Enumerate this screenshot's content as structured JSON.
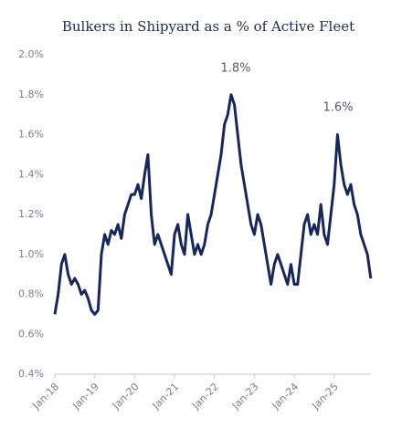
{
  "chart_data": {
    "type": "line",
    "title": "Bulkers in Shipyard as a % of Active Fleet",
    "categories": [
      "Jan-18",
      null,
      null,
      null,
      null,
      null,
      null,
      null,
      null,
      null,
      null,
      null,
      "Jan-19",
      null,
      null,
      null,
      null,
      null,
      null,
      null,
      null,
      null,
      null,
      null,
      "Jan-20",
      null,
      null,
      null,
      null,
      null,
      null,
      null,
      null,
      null,
      null,
      null,
      "Jan-21",
      null,
      null,
      null,
      null,
      null,
      null,
      null,
      null,
      null,
      null,
      null,
      "Jan-22",
      null,
      null,
      null,
      null,
      null,
      null,
      null,
      null,
      null,
      null,
      null,
      "Jan-23",
      null,
      null,
      null,
      null,
      null,
      null,
      null,
      null,
      null,
      null,
      null,
      "Jan-24",
      null,
      null,
      null,
      null,
      null,
      null,
      null,
      null,
      null,
      null,
      null,
      "Jan-25",
      null,
      null,
      null,
      null,
      null,
      null,
      null,
      null,
      null,
      null,
      null
    ],
    "series": [
      {
        "color": "#15275e",
        "values": [
          0.7,
          0.8,
          0.95,
          1.0,
          0.9,
          0.85,
          0.88,
          0.85,
          0.8,
          0.82,
          0.78,
          0.72,
          0.7,
          0.72,
          1.0,
          1.1,
          1.05,
          1.12,
          1.1,
          1.15,
          1.08,
          1.2,
          1.25,
          1.3,
          1.3,
          1.35,
          1.28,
          1.4,
          1.5,
          1.2,
          1.05,
          1.1,
          1.05,
          1.0,
          0.95,
          0.9,
          1.1,
          1.15,
          1.05,
          1.0,
          1.2,
          1.1,
          1.0,
          1.05,
          1.0,
          1.05,
          1.15,
          1.2,
          1.3,
          1.4,
          1.5,
          1.65,
          1.7,
          1.8,
          1.75,
          1.6,
          1.45,
          1.35,
          1.25,
          1.15,
          1.1,
          1.2,
          1.15,
          1.05,
          0.95,
          0.85,
          0.95,
          1.0,
          0.95,
          0.9,
          0.85,
          0.95,
          0.85,
          0.85,
          1.0,
          1.15,
          1.2,
          1.1,
          1.15,
          1.1,
          1.25,
          1.1,
          1.05,
          1.2,
          1.35,
          1.6,
          1.45,
          1.35,
          1.3,
          1.35,
          1.25,
          1.2,
          1.1,
          1.05,
          1.0,
          0.88
        ]
      }
    ],
    "annotations": [
      "1.8%",
      "1.6%"
    ],
    "ylim": [
      0.4,
      2.0
    ],
    "yticks": [
      {
        "value": 0.4,
        "label": "0.4%"
      },
      {
        "value": 0.6,
        "label": "0.6%"
      },
      {
        "value": 0.8,
        "label": "0.8%"
      },
      {
        "value": 1.0,
        "label": "1.0%"
      },
      {
        "value": 1.2,
        "label": "1.2%"
      },
      {
        "value": 1.4,
        "label": "1.4%"
      },
      {
        "value": 1.6,
        "label": "1.6%"
      },
      {
        "value": 1.8,
        "label": "1.8%"
      },
      {
        "value": 2.0,
        "label": "2.0%"
      }
    ],
    "grid": false
  }
}
